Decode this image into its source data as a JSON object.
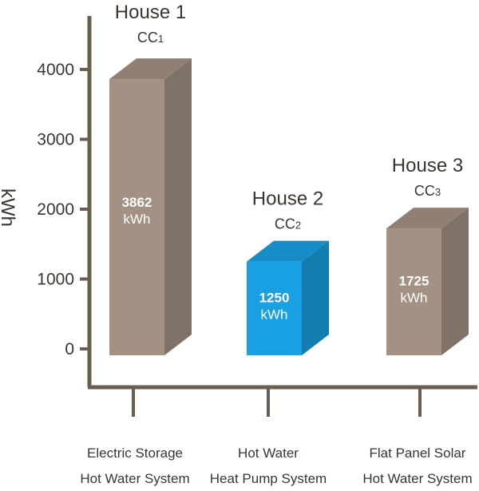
{
  "chart_data": {
    "type": "bar",
    "ylabel": "kWh",
    "ylim": [
      0,
      4000
    ],
    "yticks": [
      "0",
      "1000",
      "2000",
      "3000",
      "4000"
    ],
    "grid": false,
    "categories": [
      [
        "Electric Storage",
        "Hot Water System"
      ],
      [
        "Hot Water",
        "Heat Pump System"
      ],
      [
        "Flat Panel Solar",
        "Hot Water System"
      ]
    ],
    "bars": [
      {
        "house": "House 1",
        "sub": "CC",
        "sub_idx": "1",
        "value": 3862,
        "value_label": "3862",
        "unit_label": "kWh",
        "color": "#a39283"
      },
      {
        "house": "House 2",
        "sub": "CC",
        "sub_idx": "2",
        "value": 1250,
        "value_label": "1250",
        "unit_label": "kWh",
        "color": "#19a0e2"
      },
      {
        "house": "House 3",
        "sub": "CC",
        "sub_idx": "3",
        "value": 1725,
        "value_label": "1725",
        "unit_label": "kWh",
        "color": "#a39283"
      }
    ],
    "axis_color": "#6a5d52"
  }
}
